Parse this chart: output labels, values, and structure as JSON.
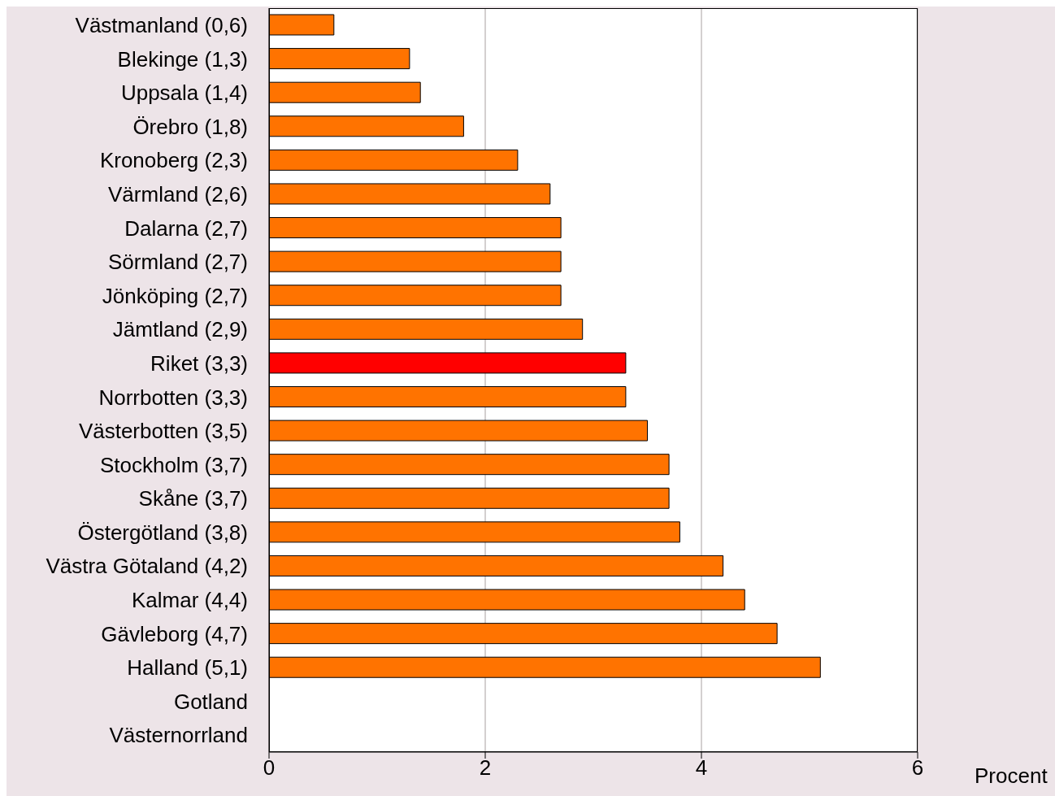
{
  "chart_data": {
    "type": "bar",
    "orientation": "horizontal",
    "xlabel": "Procent",
    "categories": [
      "Västmanland (0,6)",
      "Blekinge (1,3)",
      "Uppsala (1,4)",
      "Örebro (1,8)",
      "Kronoberg (2,3)",
      "Värmland (2,6)",
      "Dalarna (2,7)",
      "Sörmland (2,7)",
      "Jönköping (2,7)",
      "Jämtland (2,9)",
      "Riket (3,3)",
      "Norrbotten (3,3)",
      "Västerbotten (3,5)",
      "Stockholm (3,7)",
      "Skåne (3,7)",
      "Östergötland (3,8)",
      "Västra Götaland (4,2)",
      "Kalmar (4,4)",
      "Gävleborg (4,7)",
      "Halland (5,1)",
      "Gotland",
      "Västernorrland"
    ],
    "values": [
      0.6,
      1.3,
      1.4,
      1.8,
      2.3,
      2.6,
      2.7,
      2.7,
      2.7,
      2.9,
      3.3,
      3.3,
      3.5,
      3.7,
      3.7,
      3.8,
      4.2,
      4.4,
      4.7,
      5.1,
      null,
      null
    ],
    "colors": [
      "#ff7300",
      "#ff7300",
      "#ff7300",
      "#ff7300",
      "#ff7300",
      "#ff7300",
      "#ff7300",
      "#ff7300",
      "#ff7300",
      "#ff7300",
      "#ff0000",
      "#ff7300",
      "#ff7300",
      "#ff7300",
      "#ff7300",
      "#ff7300",
      "#ff7300",
      "#ff7300",
      "#ff7300",
      "#ff7300",
      "#ff7300",
      "#ff7300"
    ],
    "xlim": [
      0,
      6
    ],
    "xticks": [
      0,
      2,
      4,
      6
    ],
    "grid": "x"
  }
}
